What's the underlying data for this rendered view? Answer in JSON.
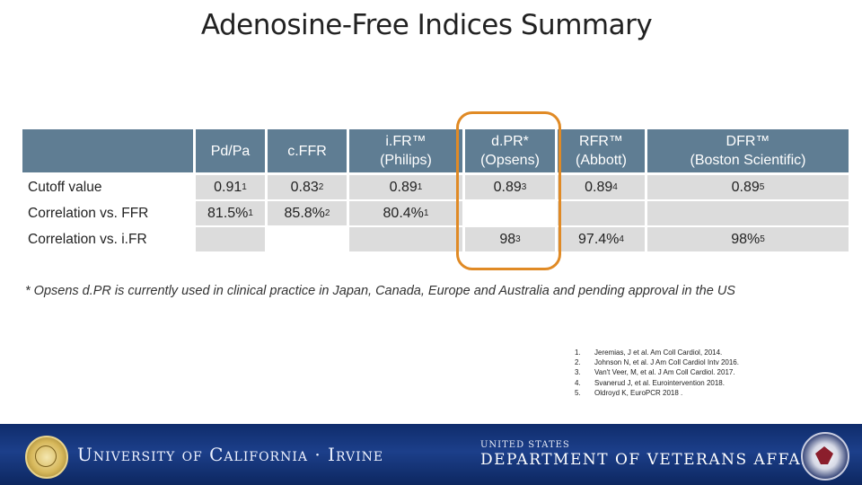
{
  "title": "Adenosine-Free Indices Summary",
  "table": {
    "headers": [
      {
        "line1": "Pd/Pa",
        "line2": ""
      },
      {
        "line1": "c.FFR",
        "line2": ""
      },
      {
        "line1": "i.FR™",
        "line2": "(Philips)"
      },
      {
        "line1": "d.PR*",
        "line2": "(Opsens)"
      },
      {
        "line1": "RFR™",
        "line2": "(Abbott)"
      },
      {
        "line1": "DFR™",
        "line2": "(Boston Scientific)"
      }
    ],
    "rows": [
      {
        "label": "Cutoff value",
        "cells": [
          {
            "v": "0.91",
            "s": "1"
          },
          {
            "v": "0.83",
            "s": "2"
          },
          {
            "v": "0.89",
            "s": "1"
          },
          {
            "v": "0.89",
            "s": "3"
          },
          {
            "v": "0.89",
            "s": "4"
          },
          {
            "v": "0.89",
            "s": "5"
          }
        ]
      },
      {
        "label": "Correlation vs. FFR",
        "cells": [
          {
            "v": "81.5%",
            "s": "1"
          },
          {
            "v": "85.8%",
            "s": "2"
          },
          {
            "v": "80.4%",
            "s": "1"
          },
          {
            "v": "",
            "s": ""
          },
          {
            "v": "",
            "s": ""
          },
          {
            "v": "",
            "s": ""
          }
        ]
      },
      {
        "label": "Correlation vs. i.FR",
        "cells": [
          {
            "v": "",
            "s": ""
          },
          {
            "v": "",
            "s": ""
          },
          {
            "v": "",
            "s": ""
          },
          {
            "v": "98",
            "s": "3"
          },
          {
            "v": "97.4%",
            "s": "4"
          },
          {
            "v": "98%",
            "s": "5"
          }
        ]
      }
    ]
  },
  "footnote": "* Opsens d.PR is currently used in clinical practice in Japan, Canada, Europe and Australia and pending approval in the US",
  "references": [
    {
      "n": "1.",
      "text": "Jeremias, J et al. Am Coll Cardiol, 2014."
    },
    {
      "n": "2.",
      "text": "Johnson N, et al. J Am Coll Cardiol Intv 2016."
    },
    {
      "n": "3.",
      "text": "Van't Veer, M, et al. J Am Coll Cardiol. 2017."
    },
    {
      "n": "4.",
      "text": "Svanerud J, et al. Eurointervention 2018."
    },
    {
      "n": "5.",
      "text": "Oldroyd K, EuroPCR 2018 ."
    }
  ],
  "banner": {
    "uci": "University of California · Irvine",
    "va_small": "UNITED STATES",
    "va_big": "DEPARTMENT OF VETERANS AFFAIRS"
  },
  "colors": {
    "header_bg": "#5f7d93",
    "row_gray": "#dcdcdc",
    "highlight": "#e08a25",
    "banner": "#1c3f8a"
  }
}
